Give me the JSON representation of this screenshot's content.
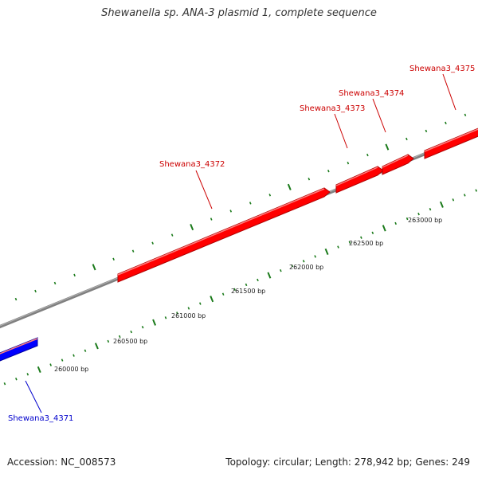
{
  "title": "Shewanella sp. ANA-3 plasmid 1, complete sequence",
  "footer": {
    "accession": "Accession: NC_008573",
    "topology": "Topology: circular; Length: 278,942 bp; Genes: 249"
  },
  "colors": {
    "forward_gene": "#ff0000",
    "reverse_gene": "#0000ff",
    "backbone": "#808080",
    "tick": "#1a7a1a",
    "label_forward": "#cc0000",
    "label_reverse": "#0000cc"
  },
  "genes": [
    {
      "name": "Shewana3_4371",
      "strand": "reverse"
    },
    {
      "name": "Shewana3_4372",
      "strand": "forward"
    },
    {
      "name": "Shewana3_4373",
      "strand": "forward"
    },
    {
      "name": "Shewana3_4374",
      "strand": "forward"
    },
    {
      "name": "Shewana3_4375",
      "strand": "forward"
    }
  ],
  "scale_labels": [
    "260000 bp",
    "260500 bp",
    "261000 bp",
    "261500 bp",
    "262000 bp",
    "262500 bp",
    "263000 bp"
  ]
}
